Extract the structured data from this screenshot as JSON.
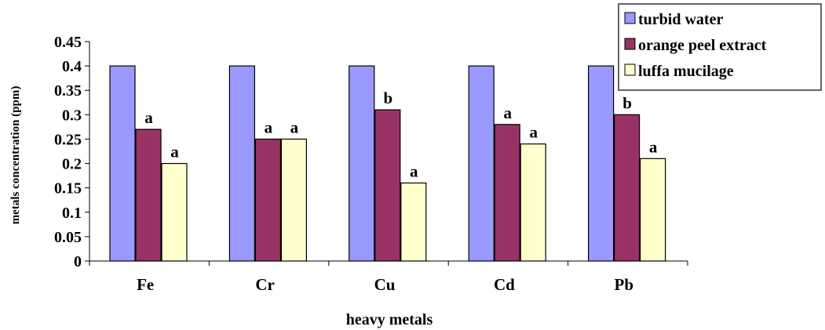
{
  "chart_data": {
    "type": "bar",
    "categories": [
      "Fe",
      "Cr",
      "Cu",
      "Cd",
      "Pb"
    ],
    "series": [
      {
        "name": "turbid water",
        "color": "#9999ff",
        "values": [
          0.4,
          0.4,
          0.4,
          0.4,
          0.4
        ],
        "labels": [
          "",
          "",
          "",
          "",
          ""
        ]
      },
      {
        "name": "orange peel extract",
        "color": "#993366",
        "values": [
          0.27,
          0.25,
          0.31,
          0.28,
          0.3
        ],
        "labels": [
          "a",
          "a",
          "b",
          "a",
          "b"
        ]
      },
      {
        "name": "luffa mucilage",
        "color": "#ffffcc",
        "values": [
          0.2,
          0.25,
          0.16,
          0.24,
          0.21
        ],
        "labels": [
          "a",
          "a",
          "a",
          "a",
          "a"
        ]
      }
    ],
    "xlabel": "heavy metals",
    "ylabel": "metals concentration (ppm)",
    "ylim": [
      0,
      0.45
    ],
    "yticks": [
      "0",
      "0.05",
      "0.1",
      "0.15",
      "0.2",
      "0.25",
      "0.3",
      "0.35",
      "0.4",
      "0.45"
    ],
    "grid": false,
    "legend_position": "top-right"
  }
}
